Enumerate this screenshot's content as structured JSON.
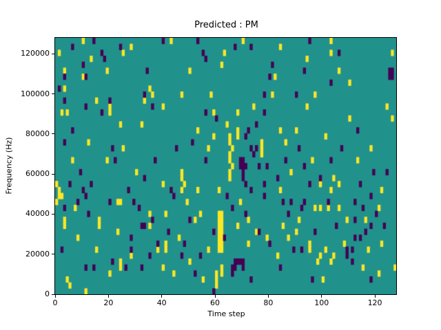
{
  "chart_data": {
    "type": "heatmap",
    "title": "Predicted : PM",
    "xlabel": "Time step",
    "ylabel": "Frequency (Hz)",
    "xlim": [
      0,
      128
    ],
    "ylim": [
      0,
      128000
    ],
    "x_ticks": [
      0,
      20,
      40,
      60,
      80,
      100,
      120
    ],
    "y_ticks": [
      0,
      20000,
      40000,
      60000,
      80000,
      100000,
      120000
    ],
    "grid_cols": 128,
    "grid_rows": 43,
    "grid": "off",
    "legend": "none",
    "colors": {
      "background": "#21918c",
      "high": "#fde725",
      "low": "#440154",
      "axis": "#000000",
      "figure_background": "#ffffff"
    },
    "cells_high": [
      [
        10,
        42
      ],
      [
        1,
        40
      ],
      [
        25,
        40
      ],
      [
        28,
        41
      ],
      [
        13,
        39
      ],
      [
        10,
        36
      ],
      [
        19,
        37
      ],
      [
        3,
        37
      ],
      [
        3,
        34
      ],
      [
        15,
        32
      ],
      [
        20,
        31
      ],
      [
        35,
        34
      ],
      [
        36,
        33
      ],
      [
        33,
        32
      ],
      [
        40,
        31
      ],
      [
        2,
        30
      ],
      [
        4,
        30
      ],
      [
        20,
        30
      ],
      [
        43,
        42
      ],
      [
        70,
        42
      ],
      [
        84,
        41
      ],
      [
        63,
        40
      ],
      [
        62,
        38
      ],
      [
        50,
        37
      ],
      [
        82,
        36
      ],
      [
        47,
        33
      ],
      [
        81,
        33
      ],
      [
        59,
        30
      ],
      [
        68,
        30
      ],
      [
        64,
        28
      ],
      [
        53,
        27
      ],
      [
        68,
        27
      ],
      [
        84,
        27
      ],
      [
        103,
        42
      ],
      [
        103,
        40
      ],
      [
        94,
        39
      ],
      [
        106,
        37
      ],
      [
        110,
        35
      ],
      [
        97,
        33
      ],
      [
        126,
        40
      ],
      [
        124,
        31
      ],
      [
        126,
        29
      ],
      [
        24,
        28
      ],
      [
        32,
        28
      ],
      [
        25,
        24
      ],
      [
        6,
        22
      ],
      [
        19,
        22
      ],
      [
        47,
        20
      ],
      [
        47,
        19
      ],
      [
        48,
        18
      ],
      [
        40,
        18
      ],
      [
        53,
        17
      ],
      [
        47,
        17
      ],
      [
        0,
        18
      ],
      [
        1,
        17
      ],
      [
        1,
        16
      ],
      [
        2,
        16
      ],
      [
        0,
        15
      ],
      [
        7,
        14
      ],
      [
        23,
        15
      ],
      [
        24,
        15
      ],
      [
        3,
        12
      ],
      [
        16,
        12
      ],
      [
        35,
        13
      ],
      [
        41,
        13
      ],
      [
        54,
        13
      ],
      [
        52,
        12
      ],
      [
        59,
        26
      ],
      [
        68,
        26
      ],
      [
        77,
        25
      ],
      [
        77,
        24
      ],
      [
        77,
        23
      ],
      [
        86,
        25
      ],
      [
        57,
        24
      ],
      [
        84,
        17
      ],
      [
        69,
        15
      ],
      [
        61,
        17
      ],
      [
        65,
        26
      ],
      [
        65,
        25
      ],
      [
        66,
        24
      ],
      [
        65,
        23
      ],
      [
        65,
        22
      ],
      [
        66,
        21
      ],
      [
        65,
        20
      ],
      [
        65,
        19
      ],
      [
        61,
        13
      ],
      [
        62,
        13
      ],
      [
        62,
        12
      ],
      [
        61,
        12
      ],
      [
        61,
        11
      ],
      [
        62,
        11
      ],
      [
        61,
        10
      ],
      [
        62,
        10
      ],
      [
        61,
        9
      ],
      [
        62,
        9
      ],
      [
        61,
        8
      ],
      [
        62,
        8
      ],
      [
        61,
        7
      ],
      [
        62,
        7
      ],
      [
        60,
        3
      ],
      [
        60,
        2
      ],
      [
        60,
        1
      ],
      [
        62,
        4
      ],
      [
        62,
        3
      ],
      [
        96,
        22
      ],
      [
        113,
        22
      ],
      [
        104,
        19
      ],
      [
        99,
        18
      ],
      [
        103,
        17
      ],
      [
        106,
        18
      ],
      [
        97,
        14
      ],
      [
        99,
        14
      ],
      [
        106,
        14
      ],
      [
        102,
        14
      ],
      [
        121,
        14
      ],
      [
        116,
        12
      ],
      [
        91,
        12
      ],
      [
        90,
        10
      ],
      [
        3,
        11
      ],
      [
        16,
        11
      ],
      [
        35,
        11
      ],
      [
        23,
        10
      ],
      [
        28,
        6
      ],
      [
        24,
        5
      ],
      [
        24,
        4
      ],
      [
        20,
        3
      ],
      [
        40,
        4
      ],
      [
        41,
        8
      ],
      [
        41,
        7
      ],
      [
        38,
        7
      ],
      [
        4,
        2
      ],
      [
        5,
        1
      ],
      [
        11,
        0
      ],
      [
        75,
        10
      ],
      [
        79,
        9
      ],
      [
        72,
        8
      ],
      [
        57,
        7
      ],
      [
        46,
        9
      ],
      [
        50,
        5
      ],
      [
        44,
        3
      ],
      [
        55,
        2
      ],
      [
        83,
        6
      ],
      [
        87,
        9
      ],
      [
        95,
        7
      ],
      [
        95,
        8
      ],
      [
        108,
        8
      ],
      [
        101,
        7
      ],
      [
        99,
        6
      ],
      [
        104,
        6
      ],
      [
        98,
        5
      ],
      [
        103,
        5
      ],
      [
        115,
        4
      ],
      [
        121,
        3
      ],
      [
        100,
        2
      ],
      [
        127,
        4
      ],
      [
        88,
        20
      ],
      [
        109,
        12
      ],
      [
        117,
        7
      ],
      [
        122,
        8
      ],
      [
        49,
        15
      ],
      [
        30,
        20
      ],
      [
        12,
        25
      ],
      [
        58,
        33
      ],
      [
        74,
        31
      ],
      [
        90,
        27
      ],
      [
        118,
        24
      ],
      [
        122,
        17
      ],
      [
        8,
        9
      ],
      [
        15,
        7
      ],
      [
        68,
        11
      ],
      [
        72,
        12
      ],
      [
        85,
        11
      ],
      [
        94,
        31
      ],
      [
        101,
        26
      ],
      [
        110,
        29
      ]
    ],
    "cells_low": [
      [
        6,
        41
      ],
      [
        14,
        42
      ],
      [
        40,
        42
      ],
      [
        24,
        41
      ],
      [
        17,
        40
      ],
      [
        18,
        39
      ],
      [
        10,
        38
      ],
      [
        3,
        36
      ],
      [
        11,
        36
      ],
      [
        34,
        37
      ],
      [
        1,
        34
      ],
      [
        3,
        32
      ],
      [
        33,
        33
      ],
      [
        11,
        31
      ],
      [
        20,
        32
      ],
      [
        17,
        30
      ],
      [
        36,
        31
      ],
      [
        53,
        42
      ],
      [
        73,
        41
      ],
      [
        55,
        40
      ],
      [
        56,
        39
      ],
      [
        81,
        38
      ],
      [
        80,
        36
      ],
      [
        78,
        33
      ],
      [
        56,
        30
      ],
      [
        78,
        30
      ],
      [
        72,
        27
      ],
      [
        67,
        41
      ],
      [
        95,
        42
      ],
      [
        106,
        40
      ],
      [
        93,
        37
      ],
      [
        103,
        35
      ],
      [
        90,
        33
      ],
      [
        125,
        36
      ],
      [
        126,
        36
      ],
      [
        125,
        37
      ],
      [
        126,
        37
      ],
      [
        6,
        27
      ],
      [
        3,
        25
      ],
      [
        21,
        24
      ],
      [
        45,
        24
      ],
      [
        56,
        22
      ],
      [
        22,
        22
      ],
      [
        33,
        19
      ],
      [
        43,
        17
      ],
      [
        44,
        16
      ],
      [
        10,
        17
      ],
      [
        11,
        16
      ],
      [
        8,
        15
      ],
      [
        20,
        15
      ],
      [
        29,
        15
      ],
      [
        3,
        14
      ],
      [
        36,
        12
      ],
      [
        50,
        12
      ],
      [
        71,
        26
      ],
      [
        73,
        24
      ],
      [
        75,
        24
      ],
      [
        74,
        23
      ],
      [
        76,
        21
      ],
      [
        71,
        18
      ],
      [
        73,
        17
      ],
      [
        78,
        18
      ],
      [
        86,
        22
      ],
      [
        85,
        15
      ],
      [
        78,
        16
      ],
      [
        66,
        14
      ],
      [
        71,
        13
      ],
      [
        87,
        13
      ],
      [
        69,
        21
      ],
      [
        70,
        21
      ],
      [
        71,
        21
      ],
      [
        69,
        22
      ],
      [
        70,
        22
      ],
      [
        70,
        20
      ],
      [
        70,
        19
      ],
      [
        93,
        21
      ],
      [
        103,
        22
      ],
      [
        119,
        20
      ],
      [
        99,
        19
      ],
      [
        95,
        18
      ],
      [
        114,
        18
      ],
      [
        118,
        16
      ],
      [
        93,
        15
      ],
      [
        92,
        14
      ],
      [
        102,
        15
      ],
      [
        112,
        15
      ],
      [
        112,
        12
      ],
      [
        115,
        14
      ],
      [
        116,
        10
      ],
      [
        118,
        11
      ],
      [
        32,
        11
      ],
      [
        33,
        11
      ],
      [
        28,
        9
      ],
      [
        2,
        7
      ],
      [
        28,
        7
      ],
      [
        35,
        6
      ],
      [
        38,
        8
      ],
      [
        21,
        5
      ],
      [
        11,
        4
      ],
      [
        14,
        4
      ],
      [
        26,
        4
      ],
      [
        32,
        4
      ],
      [
        67,
        5
      ],
      [
        68,
        5
      ],
      [
        69,
        5
      ],
      [
        70,
        5
      ],
      [
        66,
        4
      ],
      [
        67,
        4
      ],
      [
        66,
        3
      ],
      [
        70,
        4
      ],
      [
        73,
        2
      ],
      [
        59,
        0
      ],
      [
        59,
        10
      ],
      [
        63,
        9
      ],
      [
        76,
        10
      ],
      [
        80,
        8
      ],
      [
        84,
        4
      ],
      [
        47,
        6
      ],
      [
        52,
        3
      ],
      [
        112,
        9
      ],
      [
        114,
        9
      ],
      [
        89,
        7
      ],
      [
        92,
        7
      ],
      [
        109,
        7
      ],
      [
        111,
        7
      ],
      [
        109,
        6
      ],
      [
        111,
        5
      ],
      [
        96,
        2
      ],
      [
        118,
        2
      ],
      [
        27,
        17
      ],
      [
        31,
        14
      ],
      [
        42,
        10
      ],
      [
        48,
        8
      ],
      [
        54,
        6
      ],
      [
        64,
        16
      ],
      [
        79,
        21
      ],
      [
        83,
        19
      ],
      [
        88,
        15
      ],
      [
        97,
        10
      ],
      [
        105,
        11
      ],
      [
        120,
        13
      ],
      [
        123,
        11
      ],
      [
        9,
        20
      ],
      [
        5,
        18
      ],
      [
        13,
        18
      ],
      [
        37,
        22
      ],
      [
        51,
        25
      ],
      [
        60,
        29
      ],
      [
        75,
        28
      ],
      [
        91,
        24
      ],
      [
        107,
        24
      ],
      [
        113,
        27
      ],
      [
        124,
        20
      ],
      [
        12,
        13
      ]
    ]
  }
}
